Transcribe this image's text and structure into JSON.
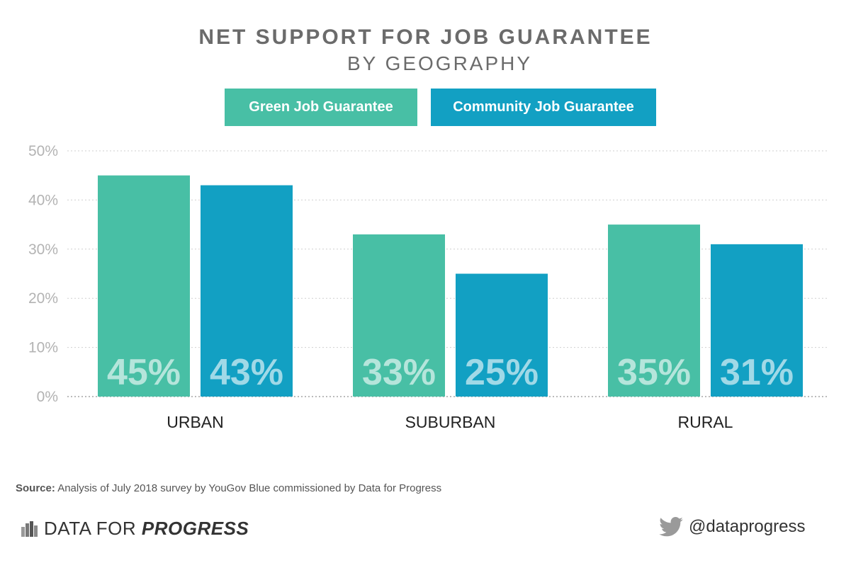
{
  "header": {
    "title": "NET SUPPORT FOR JOB GUARANTEE",
    "subtitle": "BY GEOGRAPHY"
  },
  "chart_data": {
    "type": "bar",
    "title": "NET SUPPORT FOR JOB GUARANTEE",
    "subtitle": "BY GEOGRAPHY",
    "categories": [
      "URBAN",
      "SUBURBAN",
      "RURAL"
    ],
    "series": [
      {
        "name": "Green Job Guarantee",
        "color": "#48bfa5",
        "values": [
          45,
          33,
          35
        ],
        "labels": [
          "45%",
          "33%",
          "35%"
        ]
      },
      {
        "name": "Community Job Guarantee",
        "color": "#12a0c3",
        "values": [
          43,
          25,
          31
        ],
        "labels": [
          "43%",
          "25%",
          "31%"
        ]
      }
    ],
    "ylim": [
      0,
      50
    ],
    "y_ticks": [
      "0%",
      "10%",
      "20%",
      "30%",
      "40%",
      "50%"
    ],
    "grid": true,
    "legend_position": "top"
  },
  "footer": {
    "source_label": "Source:",
    "source_text": " Analysis of July 2018 survey by YouGov Blue commissioned by Data for Progress",
    "brand_plain": "DATA FOR ",
    "brand_bold": "PROGRESS",
    "handle": "@dataprogress"
  },
  "icons": {
    "brand": "bar-chart-icon",
    "social": "twitter-bird-icon"
  }
}
